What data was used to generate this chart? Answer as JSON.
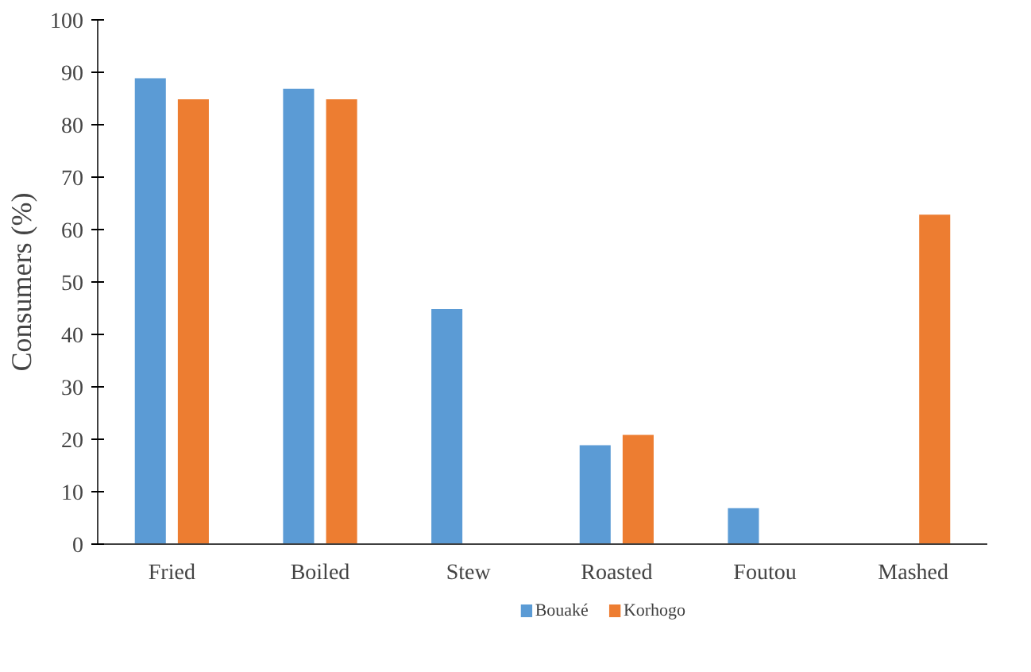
{
  "chart_data": {
    "type": "bar",
    "ylabel": "Consumers (%)",
    "categories": [
      "Fried",
      "Boiled",
      "Stew",
      "Roasted",
      "Foutou",
      "Mashed"
    ],
    "series": [
      {
        "name": "Bouaké",
        "color": "#5b9bd5",
        "values": [
          89,
          87,
          45,
          19,
          7,
          null
        ]
      },
      {
        "name": "Korhogo",
        "color": "#ed7d31",
        "values": [
          85,
          85,
          null,
          21,
          null,
          63
        ]
      }
    ],
    "ylim": [
      0,
      100
    ],
    "yticks": [
      0,
      10,
      20,
      30,
      40,
      50,
      60,
      70,
      80,
      90,
      100
    ],
    "grid": false,
    "legend": "bottom"
  }
}
